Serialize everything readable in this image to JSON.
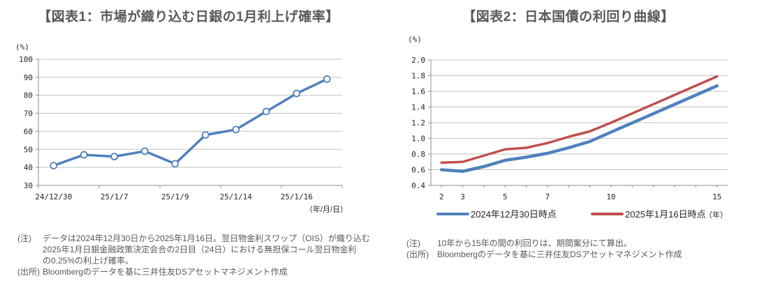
{
  "chart_data": [
    {
      "type": "line",
      "title": "【図表1：市場が織り込む日銀の1月利上げ確率】",
      "ylabel": "(%)",
      "xlabel": "（年/月/日）",
      "n_points": 10,
      "values": [
        41,
        47,
        46,
        49,
        42,
        58,
        61,
        71,
        81,
        89
      ],
      "x_tick_labels": [
        "24/12/30",
        "25/1/7",
        "25/1/9",
        "25/1/14",
        "25/1/16"
      ],
      "x_label_interval": 2,
      "ylim": [
        30,
        100
      ],
      "ytick_step": 10,
      "line_color": "#4F81BD",
      "marker": "open-circle",
      "grid": true
    },
    {
      "type": "line",
      "title": "【図表2：日本国債の利回り曲線】",
      "ylabel": "(%)",
      "xlabel": "（年）",
      "x": [
        2,
        3,
        4,
        5,
        6,
        7,
        8,
        9,
        10,
        15
      ],
      "x_tick_labels": [
        "2",
        "3",
        "5",
        "7",
        "10",
        "15"
      ],
      "xlim": [
        1.5,
        15.5
      ],
      "series": [
        {
          "name": "2024年12月30日時点",
          "color": "#4F81BD",
          "values": [
            0.6,
            0.58,
            0.64,
            0.72,
            0.76,
            0.81,
            0.88,
            0.96,
            1.08,
            1.67
          ]
        },
        {
          "name": "2025年1月16日時点",
          "color": "#C0504D",
          "values": [
            0.69,
            0.7,
            0.78,
            0.86,
            0.88,
            0.94,
            1.02,
            1.09,
            1.2,
            1.79
          ]
        }
      ],
      "ylim": [
        0.4,
        2.0
      ],
      "ytick_step": 0.2,
      "grid": true,
      "legend_position": "bottom"
    }
  ],
  "figure1_notes": {
    "note_label": "(注)",
    "note_lines": [
      "データは2024年12月30日から2025年1月16日。翌日物金利スワップ（OIS）が織り込む",
      "2025年1月日銀金融政策決定会合の2日目（24日）における無担保コール翌日物金利",
      "の0.25%の利上げ確率。"
    ],
    "source_label": "(出所)",
    "source_text": "Bloombergのデータを基に三井住友DSアセットマネジメント作成"
  },
  "figure2_notes": {
    "note_label": "(注)",
    "note_lines": [
      "10年から15年の間の利回りは、期間案分にて算出。"
    ],
    "source_label": "(出所)",
    "source_text": "Bloombergのデータを基に三井住友DSアセットマネジメント作成"
  },
  "colors": {
    "title": "#595959",
    "tick_label": "#262626",
    "gridline": "#C3C3C3",
    "axis": "#8C8C8C",
    "series_blue": "#4F81BD",
    "series_red": "#C0504D"
  }
}
